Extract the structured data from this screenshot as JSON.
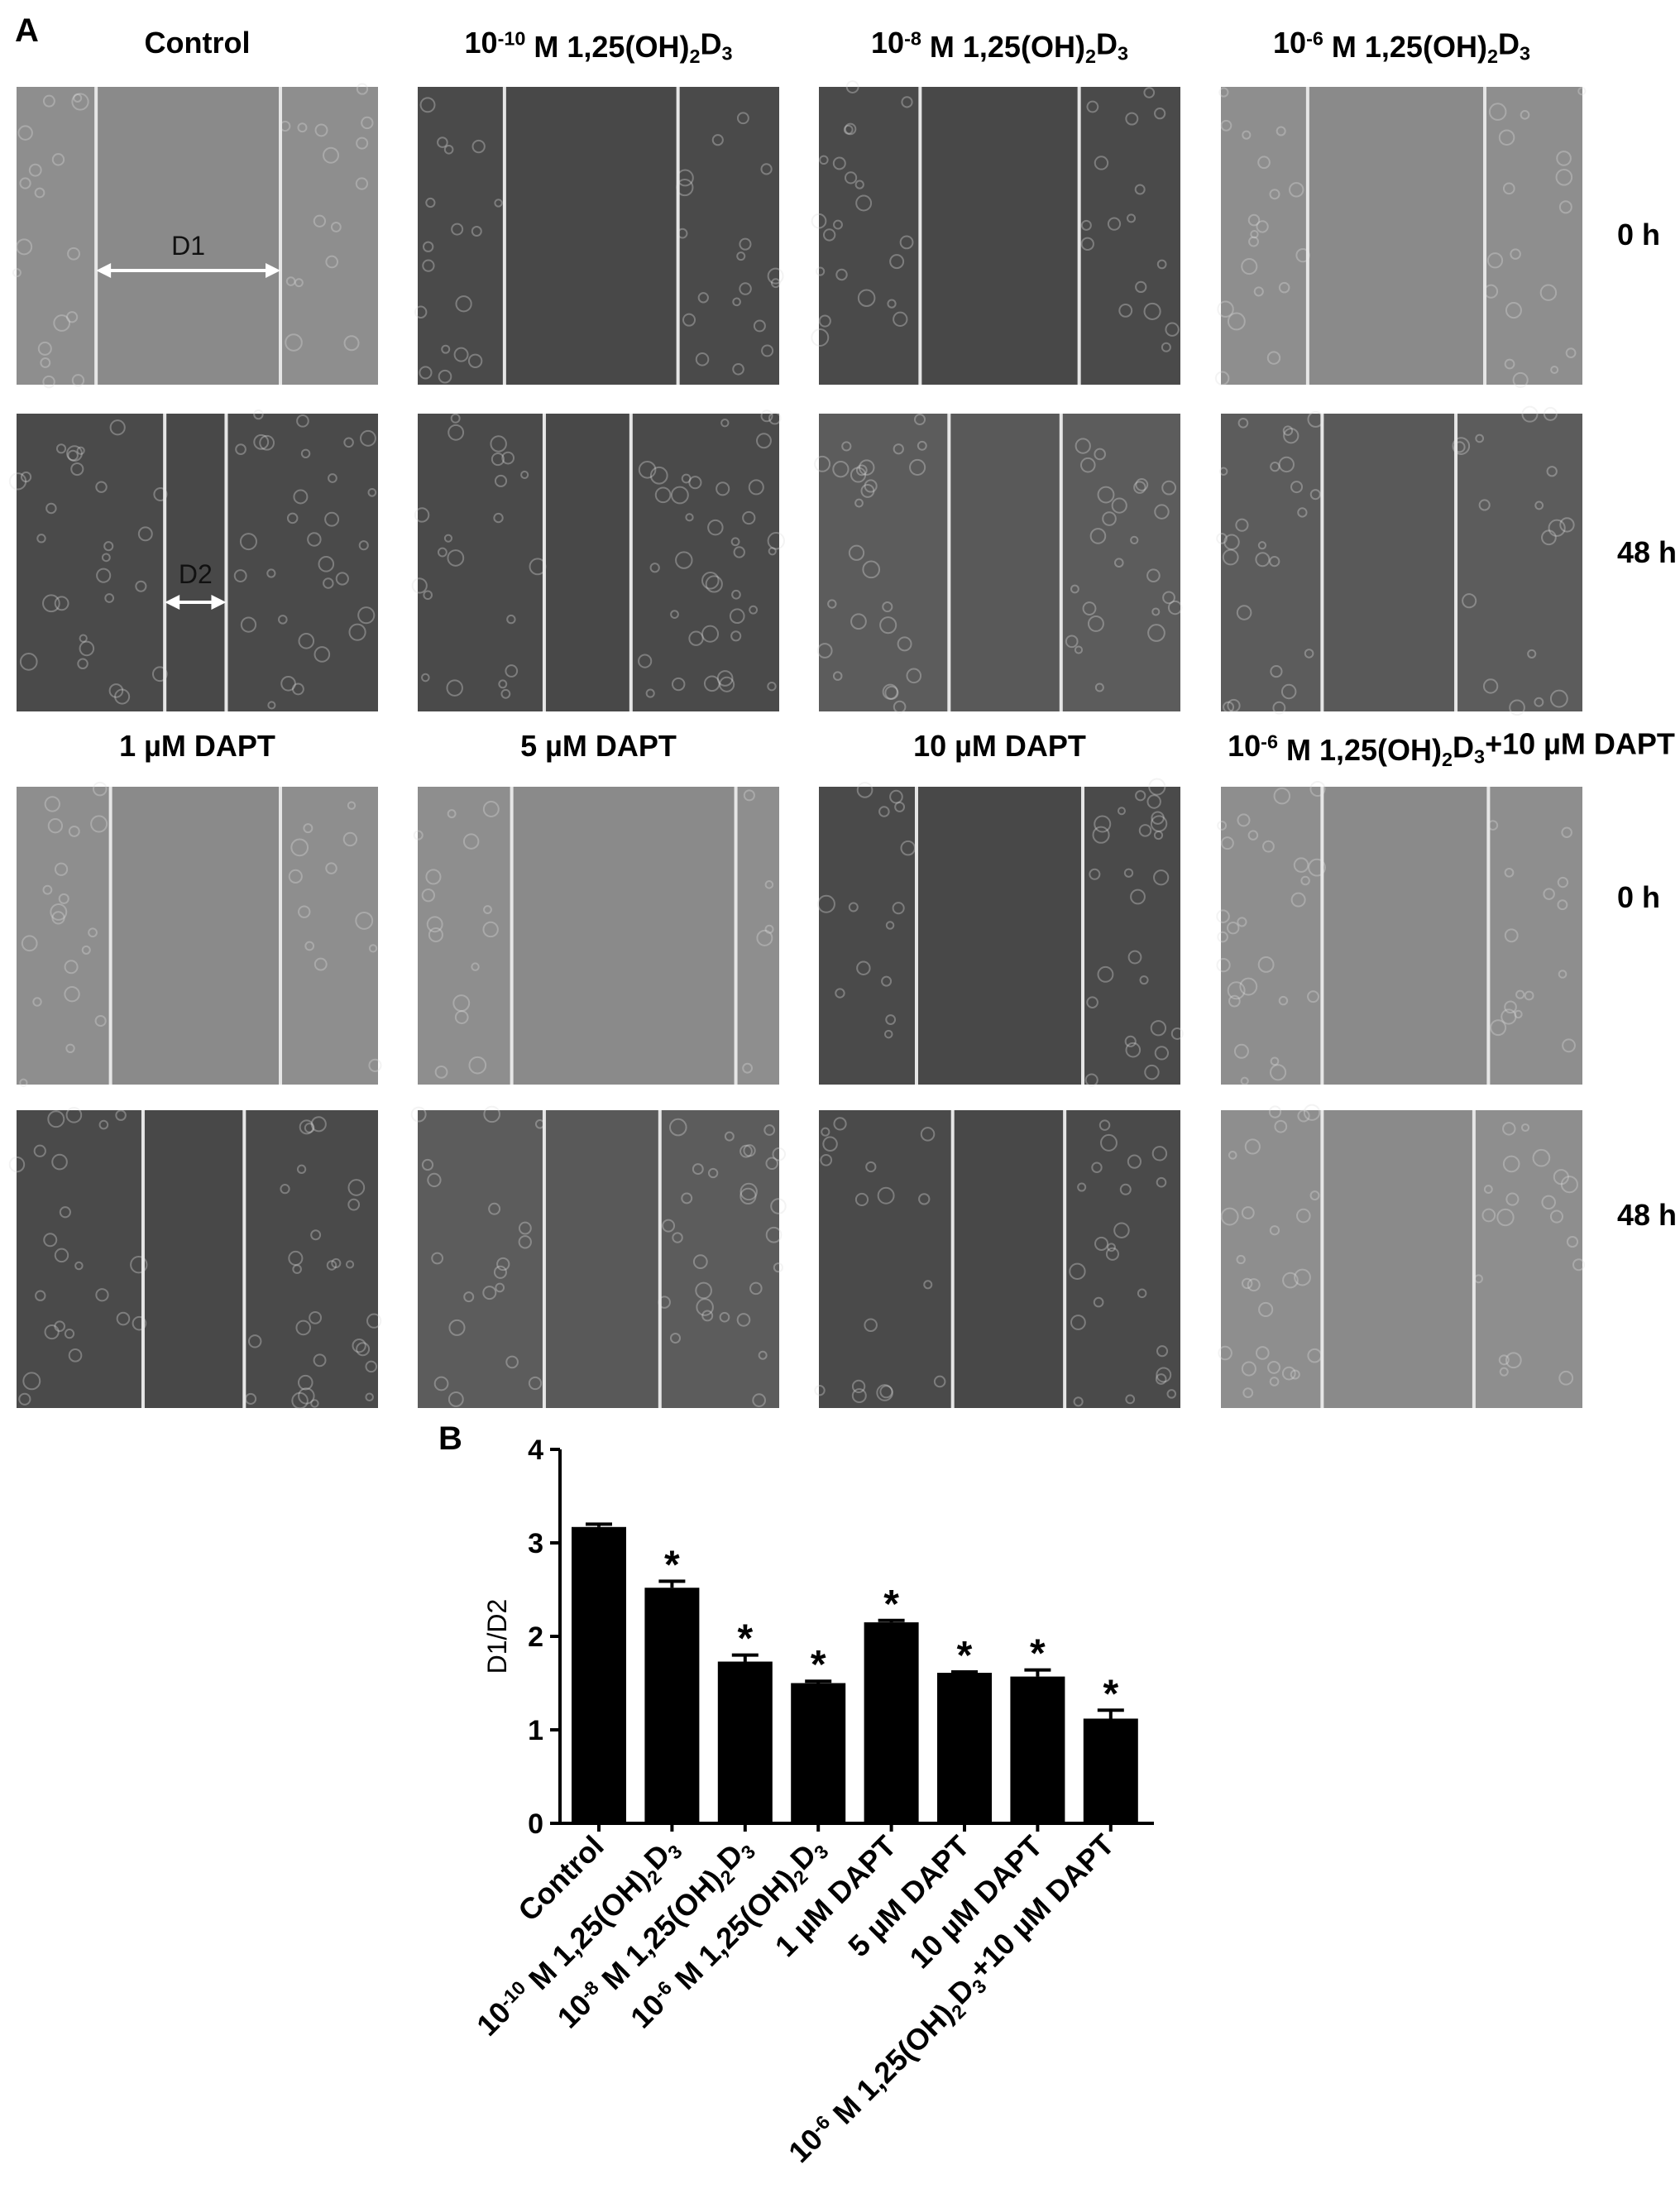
{
  "panel_a": {
    "label": "A",
    "titles": [
      [
        {
          "t": "Control"
        }
      ],
      [
        {
          "t": "10"
        },
        {
          "t": "-10",
          "s": "sup"
        },
        {
          "t": " M 1,25(OH)"
        },
        {
          "t": "2",
          "s": "sub"
        },
        {
          "t": "D"
        },
        {
          "t": "3",
          "s": "sub"
        }
      ],
      [
        {
          "t": "10"
        },
        {
          "t": "-8",
          "s": "sup"
        },
        {
          "t": " M 1,25(OH)"
        },
        {
          "t": "2",
          "s": "sub"
        },
        {
          "t": "D"
        },
        {
          "t": "3",
          "s": "sub"
        }
      ],
      [
        {
          "t": "10"
        },
        {
          "t": "-6",
          "s": "sup"
        },
        {
          "t": " M 1,25(OH)"
        },
        {
          "t": "2",
          "s": "sub"
        },
        {
          "t": "D"
        },
        {
          "t": "3",
          "s": "sub"
        }
      ],
      [
        {
          "t": "1 µM DAPT"
        }
      ],
      [
        {
          "t": "5 µM DAPT"
        }
      ],
      [
        {
          "t": "10 µM DAPT"
        }
      ],
      [
        {
          "t": "10"
        },
        {
          "t": "-6",
          "s": "sup"
        },
        {
          "t": " M 1,25(OH)"
        },
        {
          "t": "2",
          "s": "sub"
        },
        {
          "t": "D"
        },
        {
          "t": "3",
          "s": "sub"
        },
        {
          "t": "+10 µM DAPT"
        }
      ]
    ],
    "row_labels": [
      "0 h",
      "48 h",
      "0 h",
      "48 h"
    ],
    "annotations": [
      "D1",
      "D2"
    ]
  },
  "panel_b_label": "B",
  "chart_data": {
    "type": "bar",
    "ylabel": "D1/D2",
    "color": "#000000",
    "categories": [
      [
        {
          "t": "Control"
        }
      ],
      [
        {
          "t": "10"
        },
        {
          "t": "-10",
          "s": "sup"
        },
        {
          "t": " M 1,25(OH)"
        },
        {
          "t": "2",
          "s": "sub"
        },
        {
          "t": "D"
        },
        {
          "t": "3",
          "s": "sub"
        }
      ],
      [
        {
          "t": "10"
        },
        {
          "t": "-8",
          "s": "sup"
        },
        {
          "t": " M 1,25(OH)"
        },
        {
          "t": "2",
          "s": "sub"
        },
        {
          "t": "D"
        },
        {
          "t": "3",
          "s": "sub"
        }
      ],
      [
        {
          "t": "10"
        },
        {
          "t": "-6",
          "s": "sup"
        },
        {
          "t": " M 1,25(OH)"
        },
        {
          "t": "2",
          "s": "sub"
        },
        {
          "t": "D"
        },
        {
          "t": "3",
          "s": "sub"
        }
      ],
      [
        {
          "t": "1 µM DAPT"
        }
      ],
      [
        {
          "t": "5 µM DAPT"
        }
      ],
      [
        {
          "t": "10 µM DAPT"
        }
      ],
      [
        {
          "t": "10"
        },
        {
          "t": "-6",
          "s": "sup"
        },
        {
          "t": " M 1,25(OH)"
        },
        {
          "t": "2",
          "s": "sub"
        },
        {
          "t": "D"
        },
        {
          "t": "3",
          "s": "sub"
        },
        {
          "t": "+10 µM DAPT"
        }
      ]
    ],
    "values": [
      3.17,
      2.52,
      1.73,
      1.5,
      2.15,
      1.61,
      1.57,
      1.12
    ],
    "errors": [
      0.03,
      0.07,
      0.07,
      0.02,
      0.02,
      0.01,
      0.07,
      0.09
    ],
    "annotations": [
      null,
      "*",
      "*",
      "*",
      "*",
      "*",
      "*",
      "*"
    ],
    "ylim": [
      0,
      4
    ],
    "yticks": [
      0,
      1,
      2,
      3,
      4
    ]
  }
}
